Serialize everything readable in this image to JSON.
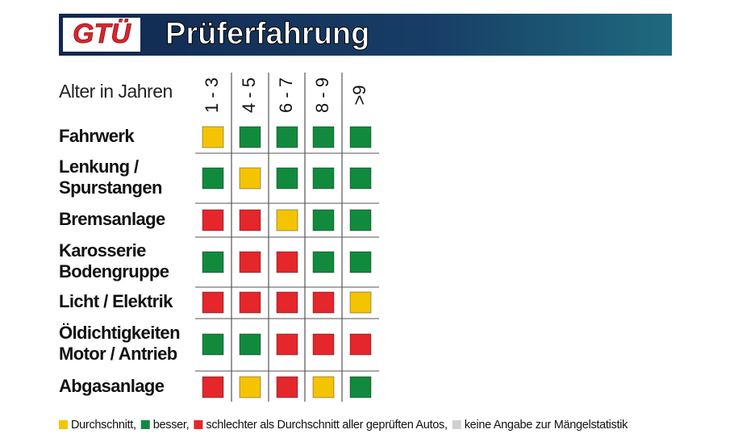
{
  "header": {
    "logo": "GTÜ",
    "title": "Prüferfahrung"
  },
  "table": {
    "axis_label": "Alter in Jahren",
    "columns": [
      "1 - 3",
      "4 - 5",
      "6 - 7",
      "8 - 9",
      ">9"
    ],
    "rows": [
      {
        "label": [
          "Fahrwerk"
        ],
        "ratings": [
          0,
          1,
          1,
          1,
          1
        ]
      },
      {
        "label": [
          "Lenkung /",
          "Spurstangen"
        ],
        "ratings": [
          1,
          0,
          1,
          1,
          1
        ]
      },
      {
        "label": [
          "Bremsanlage"
        ],
        "ratings": [
          2,
          2,
          0,
          1,
          1
        ]
      },
      {
        "label": [
          "Karosserie",
          "Bodengruppe"
        ],
        "ratings": [
          1,
          2,
          2,
          1,
          1
        ]
      },
      {
        "label": [
          "Licht / Elektrik"
        ],
        "ratings": [
          2,
          2,
          2,
          2,
          0
        ]
      },
      {
        "label": [
          "Öldichtigkeiten",
          "Motor / Antrieb"
        ],
        "ratings": [
          1,
          1,
          2,
          2,
          2
        ]
      },
      {
        "label": [
          "Abgasanlage"
        ],
        "ratings": [
          2,
          0,
          2,
          0,
          1
        ]
      }
    ]
  },
  "legend": [
    {
      "text": "Durchschnitt,",
      "color": "#f5c400"
    },
    {
      "text": "besser,",
      "color": "#128a3e"
    },
    {
      "text": "schlechter als Durchschnitt aller geprüften Autos,",
      "color": "#e5262b"
    },
    {
      "text": "keine Angabe zur Mängelstatistik",
      "color": "#cfcfcf"
    }
  ]
}
